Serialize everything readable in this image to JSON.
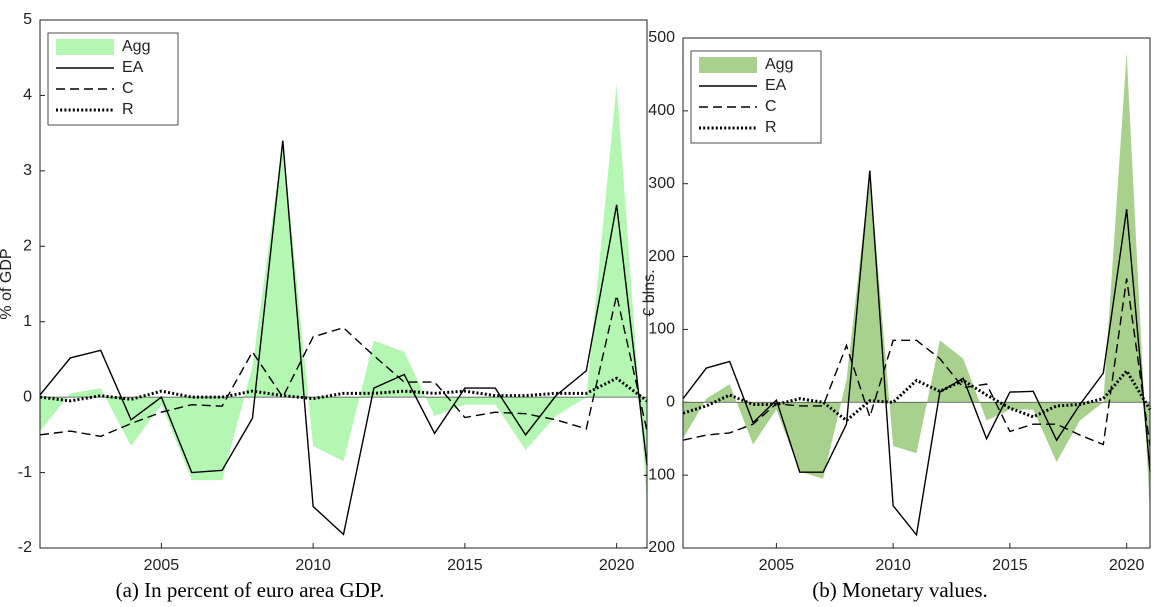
{
  "chart_data": [
    {
      "type": "line",
      "caption": "(a) In percent of euro area GDP.",
      "y_label": "% of GDP",
      "x": [
        2001,
        2002,
        2003,
        2004,
        2005,
        2006,
        2007,
        2008,
        2009,
        2010,
        2011,
        2012,
        2013,
        2014,
        2015,
        2016,
        2017,
        2018,
        2019,
        2020,
        2021
      ],
      "xlim": [
        2001,
        2021
      ],
      "xticks": [
        2005,
        2010,
        2015,
        2020
      ],
      "ylim": [
        -2,
        5
      ],
      "yticks": [
        -2,
        -1,
        0,
        1,
        2,
        3,
        4,
        5
      ],
      "legend": "upper-left",
      "series": [
        {
          "name": "Agg",
          "color": "#b3f7b3",
          "style": "area",
          "values": [
            -0.45,
            0.05,
            0.12,
            -0.65,
            -0.1,
            -1.1,
            -1.1,
            0.4,
            3.4,
            -0.65,
            -0.85,
            0.75,
            0.6,
            -0.25,
            -0.1,
            -0.1,
            -0.7,
            -0.25,
            0.0,
            4.15,
            -1.4
          ]
        },
        {
          "name": "EA",
          "color": "#000000",
          "style": "solid",
          "values": [
            0.03,
            0.52,
            0.62,
            -0.3,
            0.0,
            -1.0,
            -0.97,
            -0.28,
            3.4,
            -1.45,
            -1.82,
            0.12,
            0.3,
            -0.48,
            0.12,
            0.12,
            -0.5,
            0.02,
            0.35,
            2.55,
            -0.9
          ]
        },
        {
          "name": "C",
          "color": "#000000",
          "style": "dashed",
          "values": [
            -0.5,
            -0.45,
            -0.52,
            -0.35,
            -0.2,
            -0.1,
            -0.12,
            0.6,
            0.0,
            0.8,
            0.92,
            0.55,
            0.2,
            0.2,
            -0.27,
            -0.2,
            -0.22,
            -0.3,
            -0.42,
            1.35,
            -0.45
          ]
        },
        {
          "name": "R",
          "color": "#000000",
          "style": "dotted",
          "values": [
            0.0,
            -0.05,
            0.02,
            -0.03,
            0.08,
            0.0,
            0.0,
            0.08,
            0.02,
            -0.02,
            0.05,
            0.05,
            0.08,
            0.05,
            0.08,
            0.02,
            0.02,
            0.05,
            0.05,
            0.25,
            -0.05
          ]
        }
      ]
    },
    {
      "type": "line",
      "caption": "(b) Monetary values.",
      "y_label": "€ blns.",
      "x": [
        2001,
        2002,
        2003,
        2004,
        2005,
        2006,
        2007,
        2008,
        2009,
        2010,
        2011,
        2012,
        2013,
        2014,
        2015,
        2016,
        2017,
        2018,
        2019,
        2020,
        2021
      ],
      "xlim": [
        2001,
        2021
      ],
      "xticks": [
        2005,
        2010,
        2015,
        2020
      ],
      "ylim": [
        -200,
        500
      ],
      "yticks": [
        -200,
        -100,
        0,
        100,
        200,
        300,
        400,
        500
      ],
      "legend": "upper-left",
      "series": [
        {
          "name": "Agg",
          "color": "#a9d18e",
          "style": "area",
          "values": [
            -50,
            5,
            25,
            -58,
            -10,
            -95,
            -105,
            30,
            315,
            -60,
            -70,
            85,
            60,
            -25,
            -10,
            -10,
            -82,
            -25,
            0,
            480,
            -155
          ]
        },
        {
          "name": "EA",
          "color": "#000000",
          "style": "solid",
          "values": [
            5,
            47,
            56,
            -28,
            3,
            -96,
            -96,
            -30,
            318,
            -142,
            -182,
            14,
            33,
            -50,
            14,
            15,
            -52,
            -3,
            40,
            265,
            -95
          ]
        },
        {
          "name": "C",
          "color": "#000000",
          "style": "dashed",
          "values": [
            -52,
            -45,
            -42,
            -30,
            -2,
            -5,
            -5,
            78,
            -20,
            85,
            85,
            60,
            20,
            25,
            -40,
            -30,
            -30,
            -45,
            -58,
            170,
            -60
          ]
        },
        {
          "name": "R",
          "color": "#000000",
          "style": "dotted",
          "values": [
            -15,
            -5,
            10,
            -3,
            -3,
            5,
            0,
            -25,
            2,
            0,
            30,
            15,
            30,
            10,
            -8,
            -20,
            -5,
            -3,
            5,
            43,
            -10
          ]
        }
      ]
    }
  ]
}
